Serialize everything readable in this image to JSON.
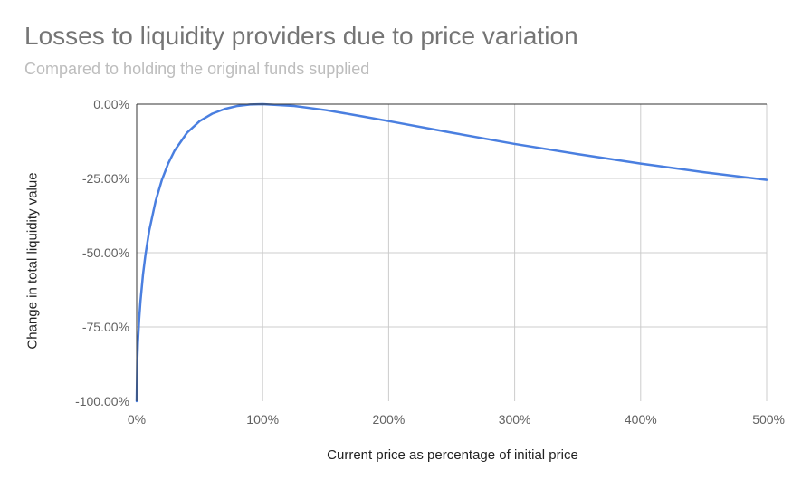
{
  "chart_data": {
    "type": "line",
    "title": "Losses to liquidity providers due to price variation",
    "subtitle": "Compared to holding the original funds supplied",
    "xlabel": "Current price as percentage of initial price",
    "ylabel": "Change in total liquidity value",
    "xlim": [
      0,
      500
    ],
    "ylim": [
      -100,
      0
    ],
    "x_ticks": [
      "0%",
      "100%",
      "200%",
      "300%",
      "400%",
      "500%"
    ],
    "y_ticks": [
      "0.00%",
      "-25.00%",
      "-50.00%",
      "-75.00%",
      "-100.00%"
    ],
    "grid": true,
    "series": [
      {
        "color": "#4a7fe0",
        "x": [
          0,
          0.5,
          1,
          2,
          3,
          5,
          7,
          10,
          15,
          20,
          25,
          30,
          40,
          50,
          60,
          70,
          80,
          90,
          100,
          125,
          150,
          175,
          200,
          250,
          300,
          350,
          400,
          450,
          500
        ],
        "y": [
          -100,
          -85.9,
          -80.2,
          -72.3,
          -66.4,
          -57.4,
          -50.6,
          -42.5,
          -32.7,
          -25.5,
          -20.0,
          -15.7,
          -9.6,
          -5.7,
          -3.2,
          -1.6,
          -0.6,
          -0.1,
          0,
          -0.6,
          -2.0,
          -3.8,
          -5.7,
          -9.6,
          -13.4,
          -16.8,
          -20.0,
          -22.9,
          -25.5
        ]
      }
    ]
  }
}
